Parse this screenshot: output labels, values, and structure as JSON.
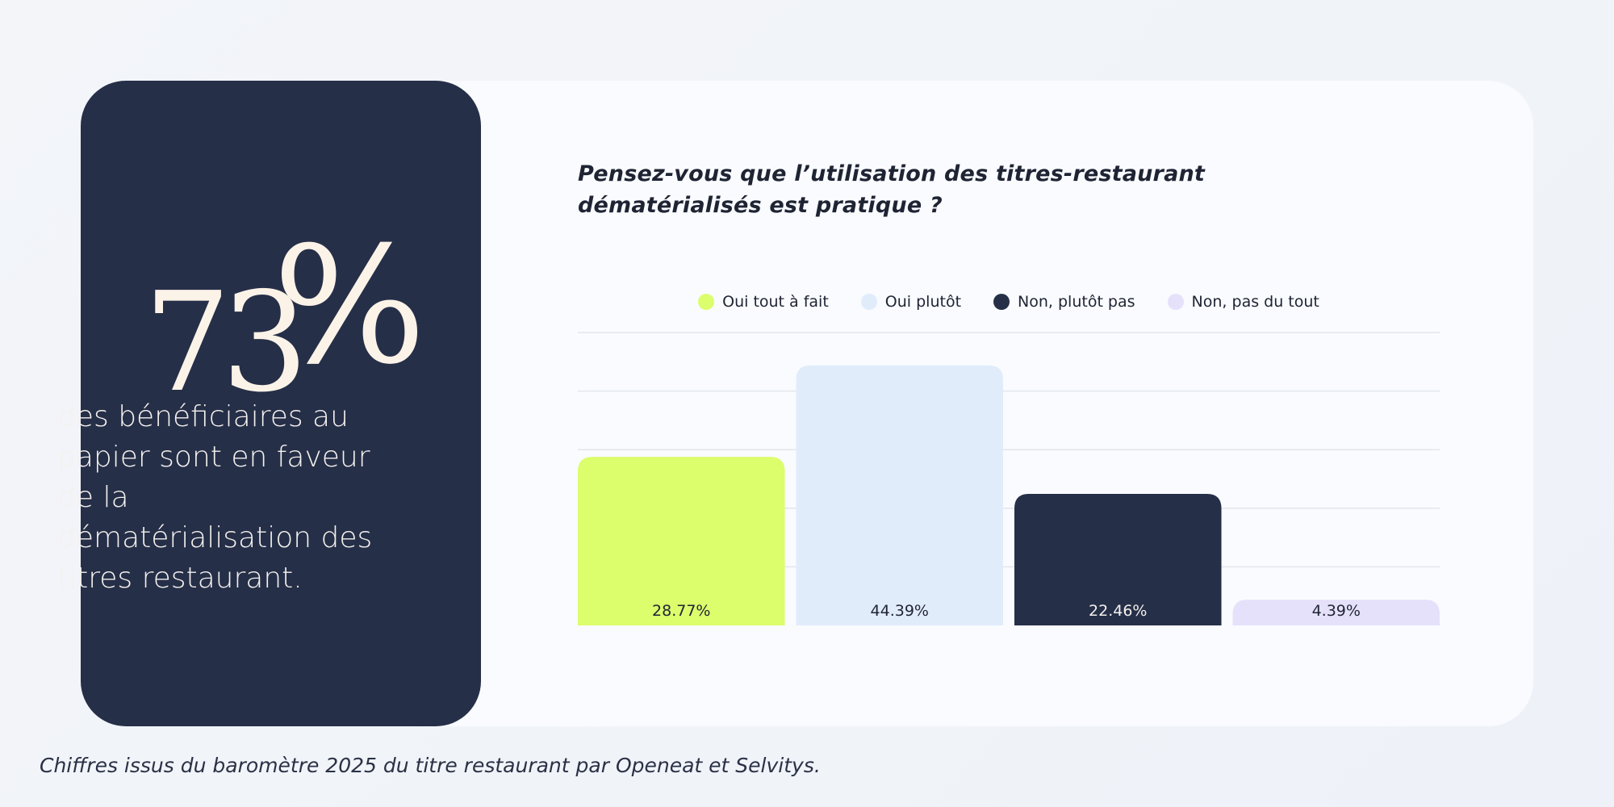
{
  "stat": {
    "number": "73",
    "percent_sign": "%",
    "description": "des bénéficiaires au papier sont en faveur de la dématérialisation des titres restaurant."
  },
  "chart_data": {
    "type": "bar",
    "title": "Pensez-vous que l’utilisation des titres-restaurant dématérialisés est pratique ?",
    "categories": [
      "Oui tout à fait",
      "Oui plutôt",
      "Non, plutôt pas",
      "Non, pas du tout"
    ],
    "values": [
      28.77,
      44.39,
      22.46,
      4.39
    ],
    "value_labels": [
      "28.77%",
      "44.39%",
      "22.46%",
      "4.39%"
    ],
    "colors": [
      "#dcfd6c",
      "#e1ecfb",
      "#262f48",
      "#e5e1fb"
    ],
    "label_colors": [
      "#1f2434",
      "#1f2434",
      "#f4f1ee",
      "#1f2434"
    ],
    "ylim": [
      0,
      50
    ],
    "grid": true,
    "legend_position": "top-center"
  },
  "source_note": "Chiffres issus du baromètre 2025 du titre restaurant par Openeat et Selvitys."
}
